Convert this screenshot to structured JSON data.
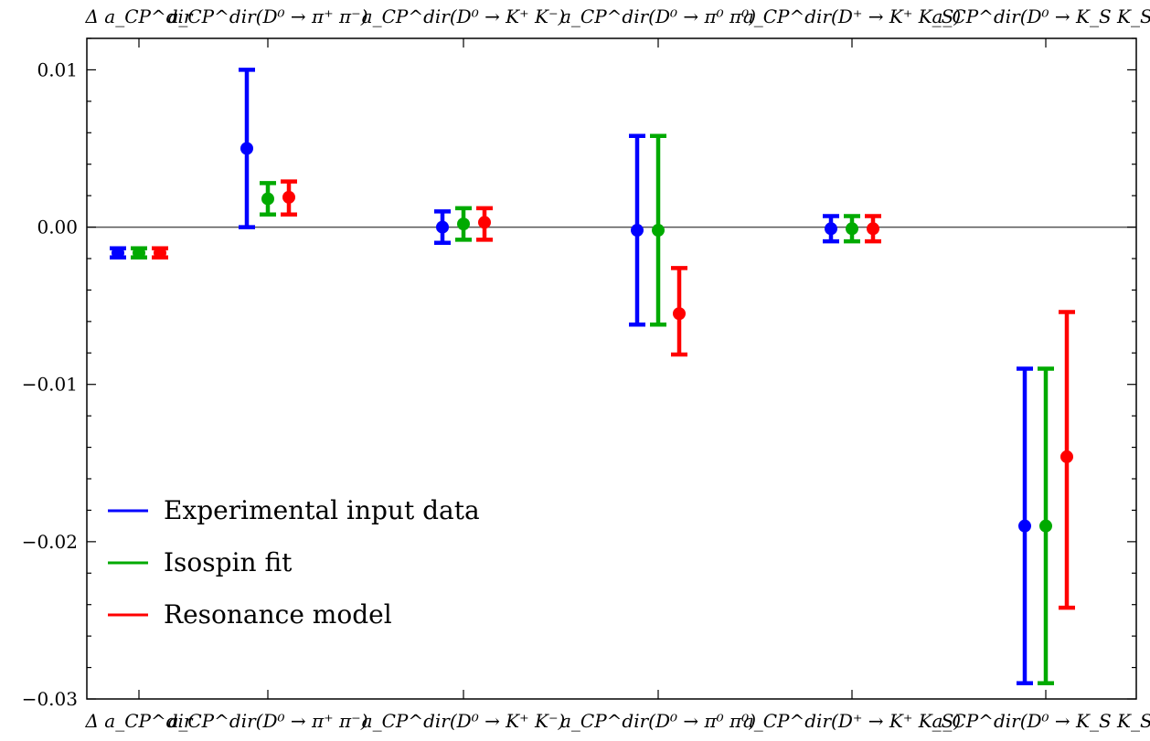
{
  "chart_data": {
    "type": "scatter",
    "title": "",
    "xlabel": "",
    "ylabel": "",
    "categories": [
      "Δ a_CP^dir",
      "a_CP^dir(D⁰ → π⁺ π⁻)",
      "a_CP^dir(D⁰ → K⁺ K⁻)",
      "a_CP^dir(D⁰ → π⁰ π⁰)",
      "a_CP^dir(D⁺ → K⁺ K_S)",
      "a_CP^dir(D⁰ → K_S K_S)"
    ],
    "ylim": [
      -0.03,
      0.012
    ],
    "yticks": [
      0.01,
      0.0,
      -0.01,
      -0.02,
      -0.03
    ],
    "ytick_labels": [
      "0.01",
      "0.00",
      "−0.01",
      "−0.02",
      "−0.03"
    ],
    "grid": false,
    "zero_line": true,
    "legend_position": "lower-left",
    "series": [
      {
        "name": "Experimental input data",
        "color": "#0000ff",
        "values": [
          -0.00164,
          0.005,
          0.0,
          -0.0002,
          -0.0001,
          -0.019
        ],
        "lower": [
          -0.00193,
          0.0,
          -0.001,
          -0.0062,
          -0.0009,
          -0.029
        ],
        "upper": [
          -0.00135,
          0.01,
          0.001,
          0.0058,
          0.0007,
          -0.009
        ]
      },
      {
        "name": "Isospin fit",
        "color": "#00aa00",
        "values": [
          -0.00164,
          0.0018,
          0.0002,
          -0.0002,
          -0.0001,
          -0.019
        ],
        "lower": [
          -0.00193,
          0.0008,
          -0.0008,
          -0.0062,
          -0.0009,
          -0.029
        ],
        "upper": [
          -0.00135,
          0.0028,
          0.0012,
          0.0058,
          0.0007,
          -0.009
        ]
      },
      {
        "name": "Resonance model",
        "color": "#ff0000",
        "values": [
          -0.00164,
          0.0019,
          0.0003,
          -0.0055,
          -0.0001,
          -0.0146
        ],
        "lower": [
          -0.00193,
          0.0008,
          -0.0008,
          -0.0081,
          -0.0009,
          -0.0242
        ],
        "upper": [
          -0.00135,
          0.0029,
          0.0012,
          -0.0026,
          0.0007,
          -0.0054
        ]
      }
    ]
  }
}
